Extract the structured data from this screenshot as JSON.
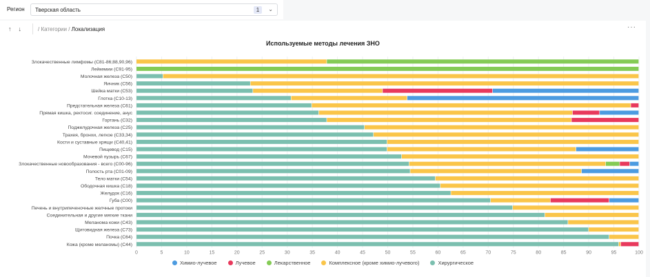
{
  "filter": {
    "label": "Регион",
    "value": "Тверская область",
    "count": "1"
  },
  "toolbar": {
    "up_icon": "↑",
    "down_icon": "↓",
    "breadcrumb_prefix": "/ Категории /",
    "breadcrumb_current": "Локализация",
    "more_icon": "···"
  },
  "colors": {
    "chemo_radiation": "#4c9be0",
    "radiation": "#e8395c",
    "drug": "#84cb55",
    "complex": "#fac549",
    "surgical": "#7bbfaf"
  },
  "chart_data": {
    "type": "bar",
    "orientation": "horizontal",
    "stacked": true,
    "title": "Используемые методы лечения ЗНО",
    "xlabel": "",
    "ylabel": "",
    "xlim": [
      0,
      100
    ],
    "xticks": [
      0,
      5,
      10,
      15,
      20,
      25,
      30,
      35,
      40,
      45,
      50,
      55,
      60,
      65,
      70,
      75,
      80,
      85,
      90,
      95,
      100
    ],
    "grid": true,
    "legend_position": "bottom",
    "categories": [
      "Злокачественные лимфомы (С81-86;88,90,96)",
      "Лейкемии (С91-95)",
      "Молочная железа (С50)",
      "Яичник (С56)",
      "Шейка матки (С53)",
      "Глотка (С10-13)",
      "Предстательная железа (С61)",
      "Прямая кишка, ректосиг. соединение, анус",
      "Гортань (С32)",
      "Поджелудочная железа (С25)",
      "Трахея, бронхи, легкое (С33,34)",
      "Кости и суставные хрящи (С40,41)",
      "Пищевод (С15)",
      "Мочевой пузырь (С67)",
      "Злокачественные новообразования - всего (С00-96)",
      "Полость рта (С01-09)",
      "Тело матки (С54)",
      "Ободочная кишка (С18)",
      "Желудок (С16)",
      "Губа (С00)",
      "Печень и внутрипеченочные желчные протоки",
      "Соединительная и другие мягкие ткани",
      "Меланома кожи (С43)",
      "Щитовидная железа (С73)",
      "Почка (С64)",
      "Кожа (кроме меланомы) (С44)"
    ],
    "series": [
      {
        "name": "Хирургическое",
        "color_key": "surgical",
        "values": [
          0,
          0,
          5.3,
          22.7,
          23.2,
          30.8,
          34.9,
          36.3,
          37.9,
          45.4,
          47.2,
          49.9,
          49.9,
          52.8,
          54.3,
          54.5,
          59.5,
          60.5,
          62.6,
          70.5,
          74.9,
          81.3,
          85.9,
          90.0,
          94.1,
          96.0
        ]
      },
      {
        "name": "Комплексное (кроме химио-лучевого)",
        "color_key": "complex",
        "values": [
          37.9,
          0,
          94.7,
          77.3,
          25.8,
          23.1,
          63.5,
          50.5,
          48.7,
          54.6,
          52.8,
          50.1,
          37.6,
          47.2,
          39.1,
          34.1,
          40.5,
          39.5,
          37.4,
          11.9,
          25.1,
          18.7,
          14.1,
          10.0,
          5.9,
          0.4
        ]
      },
      {
        "name": "Лекарственное",
        "color_key": "drug",
        "values": [
          62.1,
          100,
          0,
          0,
          0,
          0,
          0,
          0,
          0,
          0,
          0,
          0,
          0,
          0,
          2.8,
          0,
          0,
          0,
          0,
          0,
          0,
          0,
          0,
          0,
          0,
          0
        ]
      },
      {
        "name": "Лучевое",
        "color_key": "radiation",
        "values": [
          0,
          0,
          0,
          0,
          21.9,
          0,
          1.6,
          5.4,
          13.4,
          0,
          0,
          0,
          0,
          0,
          2.0,
          0,
          0,
          0,
          0,
          11.7,
          0,
          0,
          0,
          0,
          0,
          3.6
        ]
      },
      {
        "name": "Химио-лучевое",
        "color_key": "chemo_radiation",
        "values": [
          0,
          0,
          0,
          0,
          29.1,
          46.1,
          0,
          7.8,
          0,
          0,
          0,
          0,
          12.5,
          0,
          1.8,
          11.4,
          0,
          0,
          0,
          5.9,
          0,
          0,
          0,
          0,
          0,
          0
        ]
      }
    ],
    "legend": [
      {
        "name": "Химио-лучевое",
        "color_key": "chemo_radiation"
      },
      {
        "name": "Лучевое",
        "color_key": "radiation"
      },
      {
        "name": "Лекарственное",
        "color_key": "drug"
      },
      {
        "name": "Комплексное (кроме химио-лучевого)",
        "color_key": "complex"
      },
      {
        "name": "Хирургическое",
        "color_key": "surgical"
      }
    ]
  }
}
